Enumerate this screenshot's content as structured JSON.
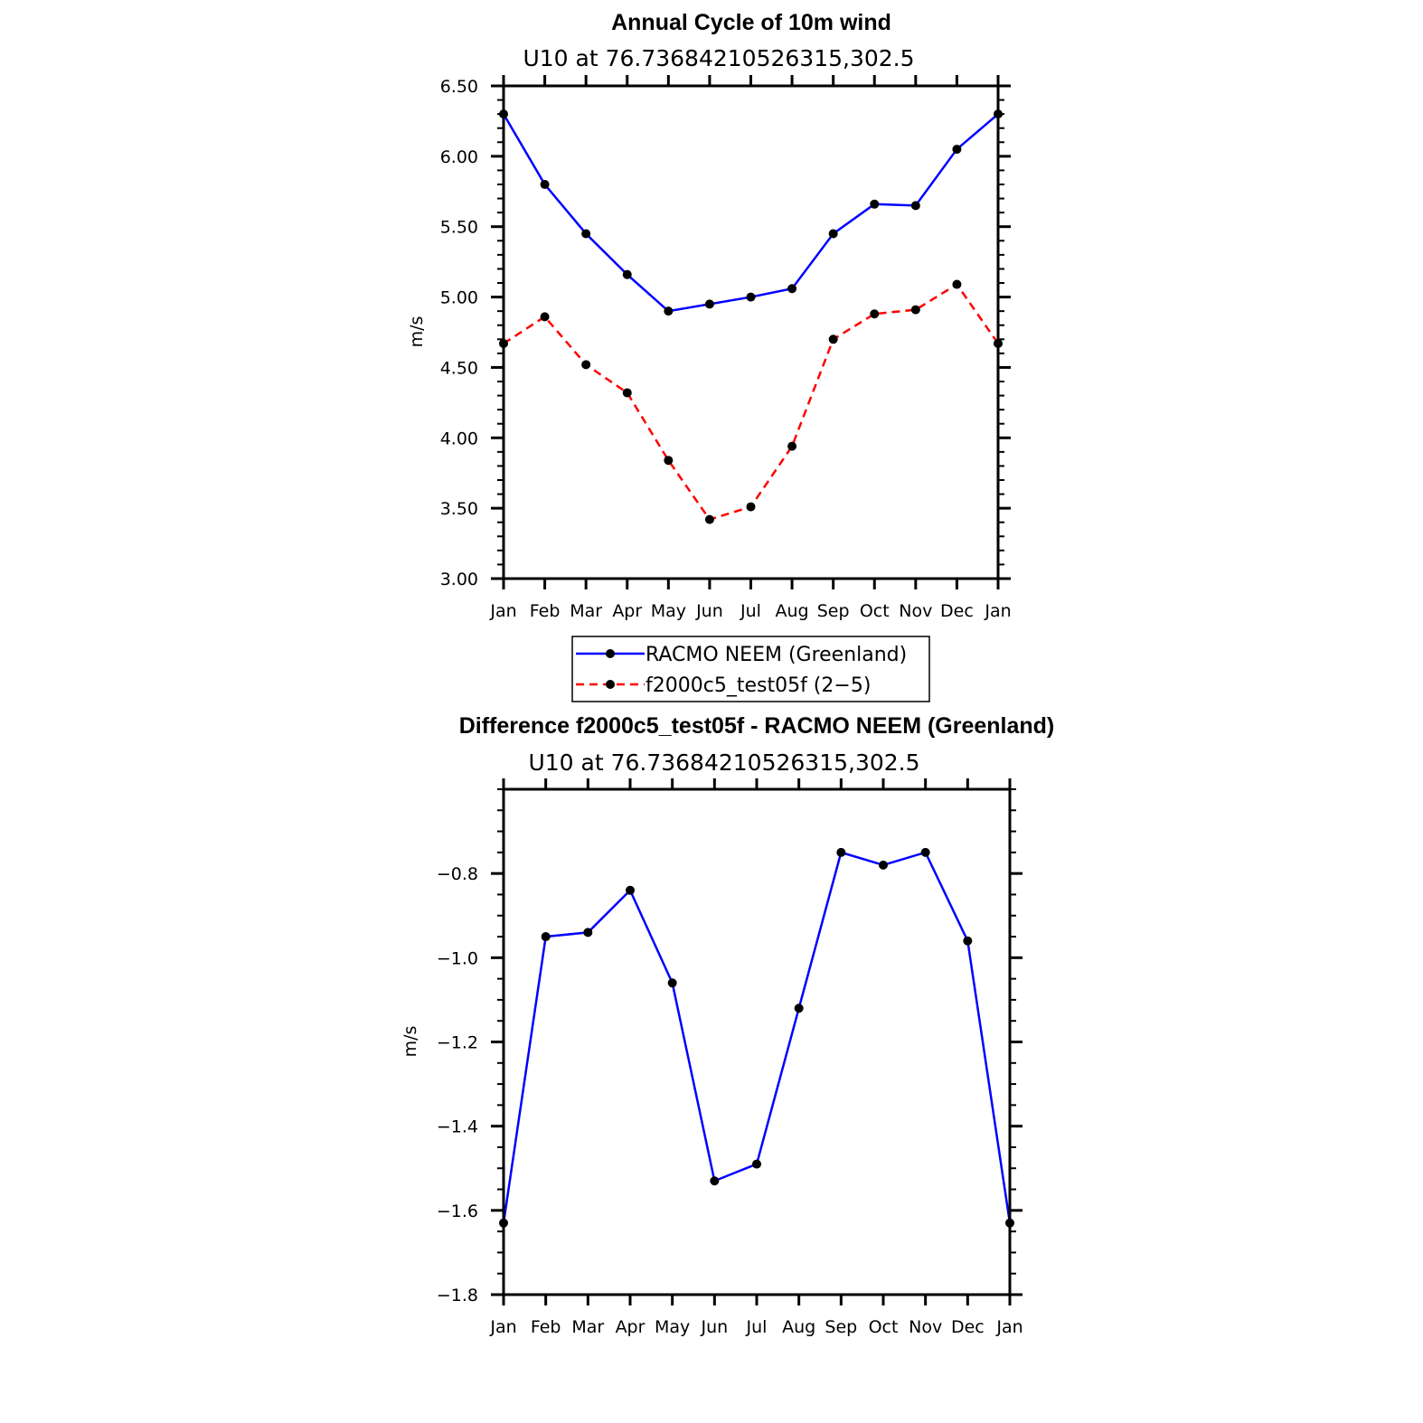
{
  "chart_data": [
    {
      "type": "line",
      "title": "Annual Cycle of 10m wind",
      "subtitle": "U10 at 76.73684210526315,302.5",
      "ylabel": "m/s",
      "xlabel": "",
      "ylim": [
        3.0,
        6.5
      ],
      "yticks": [
        "3.00",
        "3.50",
        "4.00",
        "4.50",
        "5.00",
        "5.50",
        "6.00",
        "6.50"
      ],
      "categories": [
        "Jan",
        "Feb",
        "Mar",
        "Apr",
        "May",
        "Jun",
        "Jul",
        "Aug",
        "Sep",
        "Oct",
        "Nov",
        "Dec",
        "Jan"
      ],
      "series": [
        {
          "name": "RACMO NEEM (Greenland)",
          "color": "#0000ff",
          "dash": "solid",
          "values": [
            6.3,
            5.8,
            5.45,
            5.16,
            4.9,
            4.95,
            5.0,
            5.06,
            5.45,
            5.66,
            5.65,
            6.05,
            6.3
          ]
        },
        {
          "name": "f2000c5_test05f (2-5)",
          "color": "#ff0000",
          "dash": "dashed",
          "values": [
            4.67,
            4.86,
            4.52,
            4.32,
            3.84,
            3.42,
            3.51,
            3.94,
            4.7,
            4.88,
            4.91,
            5.09,
            4.67
          ]
        }
      ],
      "legend": {
        "position": "bottom",
        "entries": [
          "RACMO NEEM (Greenland)",
          "f2000c5_test05f (2−5)"
        ]
      }
    },
    {
      "type": "line",
      "title": "Difference f2000c5_test05f - RACMO NEEM (Greenland)",
      "subtitle": "U10 at 76.73684210526315,302.5",
      "ylabel": "m/s",
      "xlabel": "",
      "ylim": [
        -1.8,
        -0.6
      ],
      "yticks": [
        "−1.8",
        "−1.6",
        "−1.4",
        "−1.2",
        "−1.0",
        "−0.8"
      ],
      "categories": [
        "Jan",
        "Feb",
        "Mar",
        "Apr",
        "May",
        "Jun",
        "Jul",
        "Aug",
        "Sep",
        "Oct",
        "Nov",
        "Dec",
        "Jan"
      ],
      "series": [
        {
          "name": "Difference",
          "color": "#0000ff",
          "dash": "solid",
          "values": [
            -1.63,
            -0.95,
            -0.94,
            -0.84,
            -1.06,
            -1.53,
            -1.49,
            -1.12,
            -0.75,
            -0.78,
            -0.75,
            -0.96,
            -1.63
          ]
        }
      ]
    }
  ]
}
